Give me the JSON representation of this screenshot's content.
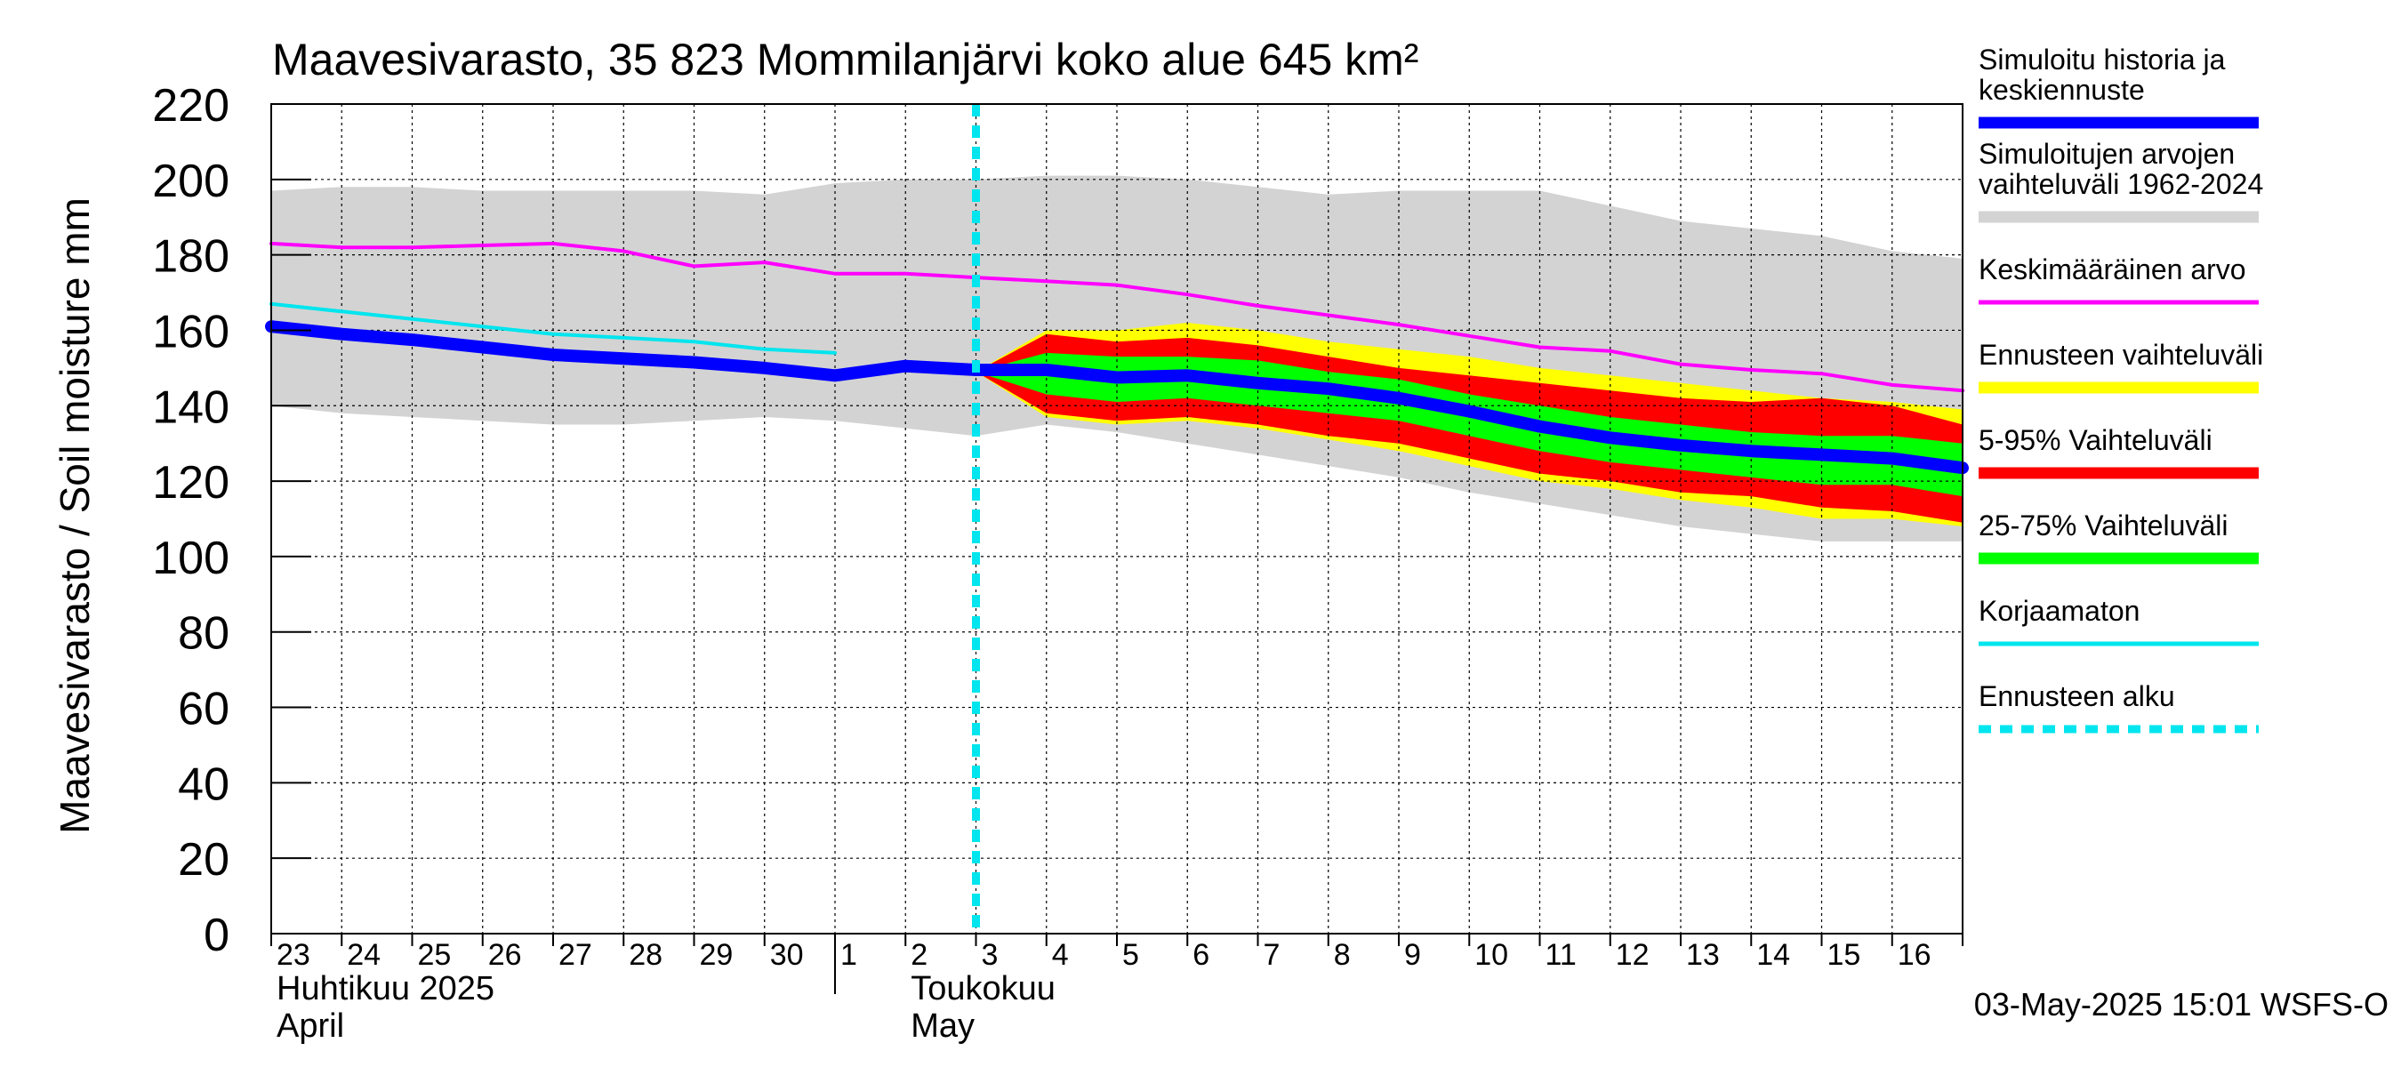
{
  "chart_data": {
    "type": "line",
    "title": "Maavesivarasto, 35 823 Mommilanjärvi koko alue 645 km²",
    "ylabel": "Maavesivarasto / Soil moisture   mm",
    "ylim": [
      0,
      220
    ],
    "yticks": [
      0,
      20,
      40,
      60,
      80,
      100,
      120,
      140,
      160,
      180,
      200,
      220
    ],
    "xlim": [
      0,
      24
    ],
    "x_tick_labels": [
      "23",
      "24",
      "25",
      "26",
      "27",
      "28",
      "29",
      "30",
      "1",
      "2",
      "3",
      "4",
      "5",
      "6",
      "7",
      "8",
      "9",
      "10",
      "11",
      "12",
      "13",
      "14",
      "15",
      "16"
    ],
    "month_labels": [
      {
        "fi": "Huhtikuu  2025",
        "en": "April",
        "x": 0
      },
      {
        "fi": "Toukokuu",
        "en": "May",
        "x": 9
      }
    ],
    "month_boundary_x": 8,
    "forecast_start_x": 10,
    "footer": "03-May-2025 15:01 WSFS-O",
    "colors": {
      "history": "#0000ff",
      "range_hist": "#d3d3d3",
      "mean": "#ff00ff",
      "range_forecast": "#ffff00",
      "p5_95": "#ff0000",
      "p25_75": "#00ff00",
      "uncorrected": "#00e5ee",
      "forecast_start": "#00e5ee"
    },
    "legend": [
      {
        "label": "Simuloitu historia ja keskiennuste",
        "lines": [
          "Simuloitu historia ja",
          "keskiennuste"
        ],
        "color": "#0000ff",
        "style": "thick"
      },
      {
        "label": "Simuloitujen arvojen vaihteluväli 1962-2024",
        "lines": [
          "Simuloitujen arvojen",
          "vaihteluväli 1962-2024"
        ],
        "color": "#d3d3d3",
        "style": "band"
      },
      {
        "label": "Keskimääräinen arvo",
        "lines": [
          "Keskimääräinen arvo"
        ],
        "color": "#ff00ff",
        "style": "thin"
      },
      {
        "label": "Ennusteen vaihteluväli",
        "lines": [
          "Ennusteen vaihteluväli"
        ],
        "color": "#ffff00",
        "style": "band"
      },
      {
        "label": "5-95% Vaihteluväli",
        "lines": [
          "5-95% Vaihteluväli"
        ],
        "color": "#ff0000",
        "style": "band"
      },
      {
        "label": "25-75% Vaihteluväli",
        "lines": [
          "25-75% Vaihteluväli"
        ],
        "color": "#00ff00",
        "style": "band"
      },
      {
        "label": "Korjaamaton",
        "lines": [
          "Korjaamaton"
        ],
        "color": "#00e5ee",
        "style": "thin"
      },
      {
        "label": "Ennusteen alku",
        "lines": [
          "Ennusteen alku"
        ],
        "color": "#00e5ee",
        "style": "dashed"
      }
    ],
    "series": [
      {
        "name": "Simuloitujen arvojen vaihteluväli 1962-2024",
        "kind": "band",
        "x": [
          0,
          1,
          2,
          3,
          4,
          5,
          6,
          7,
          8,
          9,
          10,
          11,
          12,
          13,
          14,
          15,
          16,
          17,
          18,
          19,
          20,
          21,
          22,
          23,
          24
        ],
        "lower": [
          140,
          138,
          137,
          136,
          135,
          135,
          136,
          137,
          136,
          134,
          132,
          135,
          133,
          130,
          127,
          124,
          121,
          117,
          114,
          111,
          108,
          106,
          104,
          104,
          104
        ],
        "upper": [
          197,
          198,
          198,
          197,
          197,
          197,
          197,
          196,
          199,
          200,
          200,
          201,
          201,
          200,
          198,
          196,
          197,
          197,
          197,
          193,
          189,
          187,
          185,
          181,
          179
        ]
      },
      {
        "name": "Ennusteen vaihteluväli",
        "kind": "band",
        "x": [
          10,
          11,
          12,
          13,
          14,
          15,
          16,
          17,
          18,
          19,
          20,
          21,
          22,
          23,
          24
        ],
        "lower": [
          149,
          137,
          135,
          136,
          134,
          131,
          128,
          124,
          120,
          118,
          115,
          113,
          110,
          110,
          108
        ],
        "upper": [
          149,
          160,
          160,
          162,
          160,
          157,
          155,
          153,
          150,
          148,
          146,
          144,
          142,
          141,
          139
        ]
      },
      {
        "name": "5-95% Vaihteluväli",
        "kind": "band",
        "x": [
          10,
          11,
          12,
          13,
          14,
          15,
          16,
          17,
          18,
          19,
          20,
          21,
          22,
          23,
          24
        ],
        "lower": [
          149,
          138,
          136,
          137,
          135,
          132,
          130,
          126,
          122,
          120,
          117,
          116,
          113,
          112,
          109
        ],
        "upper": [
          149,
          159,
          157,
          158,
          156,
          153,
          150,
          148,
          146,
          144,
          142,
          141,
          142,
          140,
          135
        ]
      },
      {
        "name": "25-75% Vaihteluväli",
        "kind": "band",
        "x": [
          10,
          11,
          12,
          13,
          14,
          15,
          16,
          17,
          18,
          19,
          20,
          21,
          22,
          23,
          24
        ],
        "lower": [
          149,
          143,
          141,
          142,
          140,
          138,
          136,
          132,
          128,
          125,
          123,
          121,
          119,
          119,
          116
        ],
        "upper": [
          149,
          154,
          153,
          153,
          152,
          149,
          147,
          143,
          140,
          137,
          135,
          133,
          132,
          132,
          130
        ]
      },
      {
        "name": "Keskimääräinen arvo",
        "kind": "line",
        "x": [
          0,
          1,
          2,
          3,
          4,
          5,
          6,
          7,
          8,
          9,
          10,
          11,
          12,
          13,
          14,
          15,
          16,
          17,
          18,
          19,
          20,
          21,
          22,
          23,
          24
        ],
        "values": [
          183,
          182,
          182,
          182.5,
          183,
          181,
          177,
          178,
          175,
          175,
          174,
          173,
          172,
          169.5,
          166.5,
          164,
          161.5,
          158.5,
          155.5,
          154.5,
          151,
          149.5,
          148.5,
          145.5,
          144
        ]
      },
      {
        "name": "Korjaamaton",
        "kind": "line",
        "x": [
          0,
          1,
          2,
          3,
          4,
          5,
          6,
          7,
          8
        ],
        "values": [
          167,
          165,
          163,
          161,
          159,
          158,
          157,
          155,
          154
        ]
      },
      {
        "name": "Simuloitu historia ja keskiennuste",
        "kind": "line",
        "x": [
          0,
          1,
          2,
          3,
          4,
          5,
          6,
          7,
          8,
          9,
          10,
          11,
          12,
          13,
          14,
          15,
          16,
          17,
          18,
          19,
          20,
          21,
          22,
          23,
          24
        ],
        "values": [
          161,
          159,
          157.5,
          155.5,
          153.5,
          152.5,
          151.5,
          150,
          148,
          150.5,
          149.5,
          149.5,
          147.5,
          148,
          146,
          144.5,
          142,
          138.5,
          134.5,
          131.5,
          129.5,
          128,
          127,
          126,
          123.5
        ]
      }
    ]
  }
}
